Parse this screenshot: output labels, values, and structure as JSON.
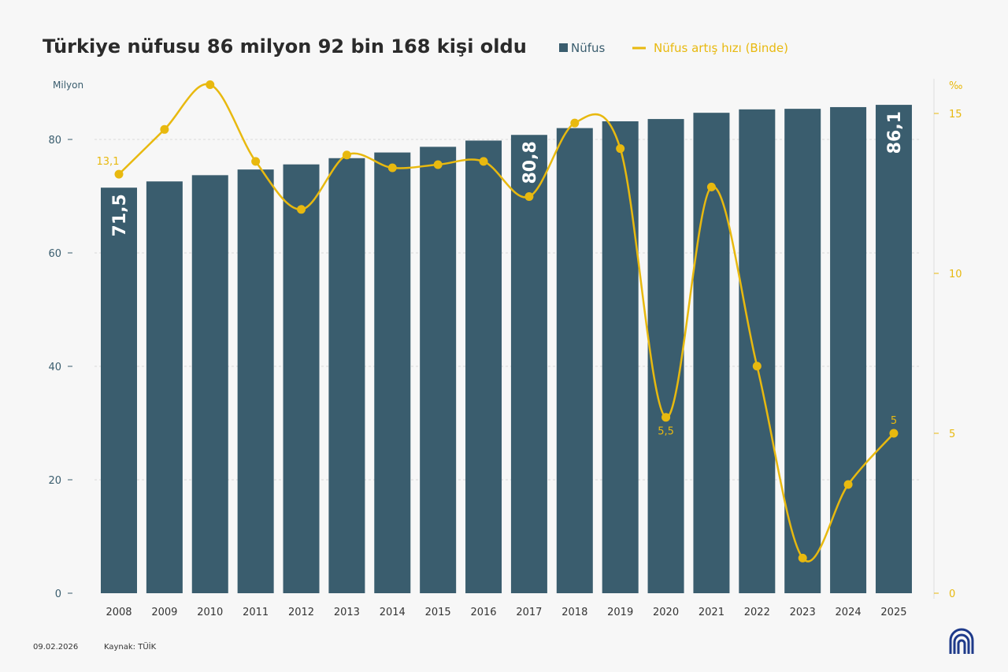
{
  "header": {
    "title": "Türkiye nüfusu 86 milyon 92 bin 168 kişi oldu",
    "legend": [
      {
        "label": "Nüfus",
        "color": "#3a5d6e",
        "marker": "square"
      },
      {
        "label": "Nüfus artış hızı (Binde)",
        "color": "#e8b90f",
        "marker": "line"
      }
    ]
  },
  "footer": {
    "date": "09.02.2026",
    "source": "Kaynak: TÜİK",
    "logo": "AA"
  },
  "chart_data": {
    "type": "bar+line",
    "categories": [
      "2008",
      "2009",
      "2010",
      "2011",
      "2012",
      "2013",
      "2014",
      "2015",
      "2016",
      "2017",
      "2018",
      "2019",
      "2020",
      "2021",
      "2022",
      "2023",
      "2024",
      "2025"
    ],
    "series": [
      {
        "name": "Nüfus",
        "type": "bar",
        "axis": "left",
        "color": "#3a5d6e",
        "values": [
          71.5,
          72.6,
          73.7,
          74.7,
          75.6,
          76.7,
          77.7,
          78.7,
          79.8,
          80.8,
          82.0,
          83.2,
          83.6,
          84.7,
          85.3,
          85.4,
          85.7,
          86.1
        ],
        "data_labels": {
          "0": "71,5",
          "9": "80,8",
          "17": "86,1"
        }
      },
      {
        "name": "Nüfus artış hızı (Binde)",
        "type": "line",
        "axis": "right",
        "color": "#e8b90f",
        "values": [
          13.1,
          14.5,
          15.9,
          13.5,
          12.0,
          13.7,
          13.3,
          13.4,
          13.5,
          12.4,
          14.7,
          13.9,
          5.5,
          12.7,
          7.1,
          1.1,
          3.4,
          5.0
        ],
        "data_labels": {
          "0": "13,1",
          "12": "5,5",
          "17": "5"
        }
      }
    ],
    "left_axis": {
      "label": "Milyon",
      "ylim": [
        0,
        86
      ],
      "ticks": [
        "0",
        "20",
        "40",
        "60",
        "80"
      ]
    },
    "right_axis": {
      "label": "‰",
      "ylim": [
        0,
        16
      ],
      "ticks": [
        "0",
        "5",
        "10",
        "15"
      ]
    },
    "grid": true,
    "legend_position": "top"
  }
}
